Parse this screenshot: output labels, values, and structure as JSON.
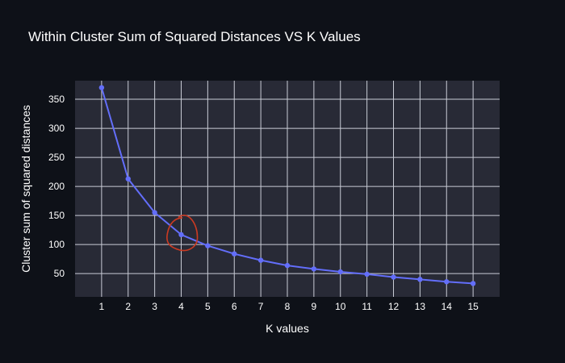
{
  "chart_data": {
    "type": "line",
    "title": "Within Cluster Sum of Squared Distances VS K Values",
    "xlabel": "K values",
    "ylabel": "Cluster sum of squared distances",
    "x": [
      1,
      2,
      3,
      4,
      5,
      6,
      7,
      8,
      9,
      10,
      11,
      12,
      13,
      14,
      15
    ],
    "y": [
      370,
      213,
      155,
      117,
      98,
      84,
      73,
      64,
      58,
      53,
      49,
      44,
      40,
      36,
      33
    ],
    "xticks": [
      "1",
      "2",
      "3",
      "4",
      "5",
      "6",
      "7",
      "8",
      "9",
      "10",
      "11",
      "12",
      "13",
      "14",
      "15"
    ],
    "yticks": [
      "50",
      "100",
      "150",
      "200",
      "250",
      "300",
      "350"
    ],
    "ylim": [
      10,
      382
    ],
    "xlim": [
      0,
      16
    ],
    "grid": true,
    "marker": true,
    "annotation": {
      "type": "hand-drawn circle",
      "at_x": 4,
      "color": "#cc3a22"
    },
    "colors": {
      "page_background": "#0e1118",
      "plot_background": "#282a36",
      "gridline": "#c9ccd6",
      "series": "#636efa"
    }
  }
}
